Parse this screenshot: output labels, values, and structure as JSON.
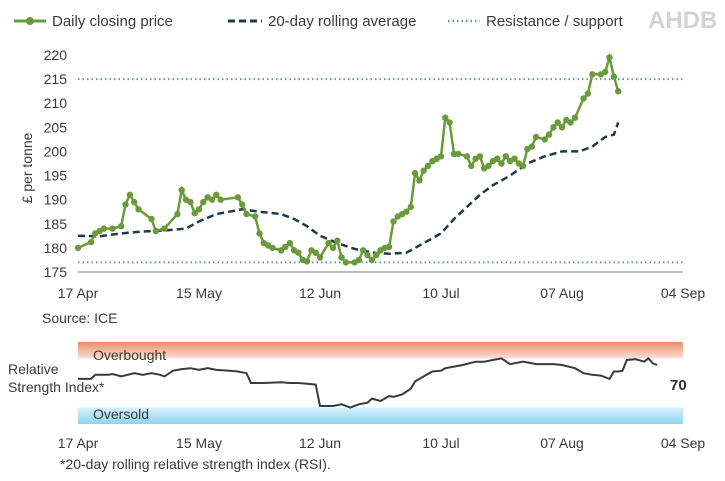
{
  "logo": "AHDB",
  "legend": {
    "daily": "Daily closing price",
    "rolling": "20-day rolling average",
    "resistance": "Resistance / support"
  },
  "source": "Source: ICE",
  "footnote": "*20-day rolling relative strength index (RSI).",
  "colors": {
    "daily": "#6a9a3a",
    "rolling": "#1f3a4a",
    "resistance": "#5f9e9e",
    "rsi": "#3a3a3a",
    "overbought": "#f0a888",
    "oversold": "#a8dcf0"
  },
  "chart_data": [
    {
      "type": "line",
      "ylabel": "£ per tonne",
      "ylim": [
        175,
        220
      ],
      "y_ticks": [
        "175",
        "180",
        "185",
        "190",
        "195",
        "200",
        "205",
        "210",
        "215",
        "220"
      ],
      "x_ticks": [
        "17 Apr",
        "15 May",
        "12 Jun",
        "10 Jul",
        "07 Aug",
        "04 Sep"
      ],
      "x_tick_days": [
        0,
        28,
        56,
        84,
        112,
        140
      ],
      "resistance": 215,
      "support": 177,
      "series": [
        {
          "name": "Daily closing price",
          "points": [
            [
              0,
              180
            ],
            [
              3,
              181.2
            ],
            [
              4,
              183
            ],
            [
              5,
              183.5
            ],
            [
              6,
              184
            ],
            [
              8,
              184
            ],
            [
              10,
              184.5
            ],
            [
              11,
              189
            ],
            [
              12,
              191
            ],
            [
              13,
              189.5
            ],
            [
              14,
              188
            ],
            [
              17,
              186
            ],
            [
              18,
              183.5
            ],
            [
              20,
              184
            ],
            [
              23,
              187
            ],
            [
              24,
              192
            ],
            [
              25,
              190
            ],
            [
              26,
              189.5
            ],
            [
              27,
              187.2
            ],
            [
              28,
              188
            ],
            [
              29,
              189.5
            ],
            [
              30,
              190.5
            ],
            [
              31,
              190
            ],
            [
              32,
              191
            ],
            [
              33,
              190
            ],
            [
              37,
              190.5
            ],
            [
              38,
              189
            ],
            [
              39,
              187
            ],
            [
              41,
              186.5
            ],
            [
              42,
              183
            ],
            [
              43,
              181
            ],
            [
              44,
              180.5
            ],
            [
              45,
              180
            ],
            [
              47,
              179.5
            ],
            [
              48,
              180.2
            ],
            [
              49,
              181
            ],
            [
              50,
              179.5
            ],
            [
              51,
              179
            ],
            [
              52,
              177.5
            ],
            [
              53,
              177.2
            ],
            [
              54,
              179.5
            ],
            [
              55,
              179
            ],
            [
              56,
              178
            ],
            [
              58,
              181
            ],
            [
              59,
              180
            ],
            [
              60,
              181.5
            ],
            [
              61,
              178
            ],
            [
              62,
              177
            ],
            [
              64,
              177
            ],
            [
              65,
              177.5
            ],
            [
              66,
              179.5
            ],
            [
              67,
              178.5
            ],
            [
              68,
              177.5
            ],
            [
              69,
              178.5
            ],
            [
              70,
              179.5
            ],
            [
              71,
              180
            ],
            [
              72,
              180.2
            ],
            [
              73,
              185.5
            ],
            [
              74,
              186.5
            ],
            [
              75,
              187
            ],
            [
              76,
              187.5
            ],
            [
              77,
              188.5
            ],
            [
              78,
              195.5
            ],
            [
              79,
              194
            ],
            [
              80,
              196
            ],
            [
              81,
              197
            ],
            [
              82,
              198
            ],
            [
              83,
              198.5
            ],
            [
              84,
              199
            ],
            [
              85,
              207
            ],
            [
              86,
              206
            ],
            [
              87,
              199.5
            ],
            [
              88,
              199.5
            ],
            [
              90,
              199
            ],
            [
              91,
              197
            ],
            [
              92,
              198.5
            ],
            [
              93,
              199
            ],
            [
              94,
              196.5
            ],
            [
              95,
              197
            ],
            [
              96,
              198
            ],
            [
              97,
              198.5
            ],
            [
              98,
              197.5
            ],
            [
              99,
              199
            ],
            [
              100,
              198
            ],
            [
              101,
              198.5
            ],
            [
              102,
              197.5
            ],
            [
              103,
              197
            ],
            [
              104,
              200.5
            ],
            [
              105,
              201
            ],
            [
              106,
              203
            ],
            [
              108,
              202.5
            ],
            [
              109,
              203.5
            ],
            [
              110,
              205
            ],
            [
              111,
              206
            ],
            [
              112,
              205
            ],
            [
              113,
              206.5
            ],
            [
              114,
              206
            ],
            [
              115,
              207
            ],
            [
              117,
              211
            ],
            [
              118,
              212
            ],
            [
              119,
              216
            ],
            [
              121,
              216
            ],
            [
              122,
              216.5
            ],
            [
              123,
              219.5
            ],
            [
              124,
              215.5
            ],
            [
              125,
              212.5
            ]
          ]
        },
        {
          "name": "20-day rolling average",
          "points": [
            [
              0,
              182.5
            ],
            [
              5,
              182.4
            ],
            [
              10,
              183
            ],
            [
              15,
              183.4
            ],
            [
              20,
              183.6
            ],
            [
              25,
              184
            ],
            [
              28,
              185.5
            ],
            [
              32,
              187
            ],
            [
              35,
              187.5
            ],
            [
              38,
              188
            ],
            [
              42,
              187.5
            ],
            [
              47,
              187
            ],
            [
              50,
              186
            ],
            [
              53,
              184.5
            ],
            [
              56,
              182.5
            ],
            [
              60,
              181
            ],
            [
              64,
              179.8
            ],
            [
              68,
              179
            ],
            [
              72,
              178.8
            ],
            [
              76,
              179
            ],
            [
              80,
              181
            ],
            [
              84,
              183
            ],
            [
              87,
              186
            ],
            [
              90,
              188.5
            ],
            [
              93,
              191
            ],
            [
              96,
              193
            ],
            [
              100,
              195
            ],
            [
              104,
              197.5
            ],
            [
              108,
              199
            ],
            [
              112,
              200
            ],
            [
              116,
              200
            ],
            [
              119,
              201
            ],
            [
              122,
              203
            ],
            [
              124,
              203.5
            ],
            [
              125,
              206
            ]
          ]
        }
      ]
    },
    {
      "type": "line",
      "title": "Relative Strength Index*",
      "value_label": "70",
      "bands": {
        "overbought": "Overbought",
        "oversold": "Oversold"
      },
      "ylim": [
        0,
        100
      ],
      "band_limits": {
        "overbought": [
          80,
          100
        ],
        "oversold": [
          0,
          20
        ]
      },
      "x_ticks": [
        "17 Apr",
        "15 May",
        "12 Jun",
        "10 Jul",
        "07 Aug",
        "04 Sep"
      ],
      "x_tick_days": [
        0,
        28,
        56,
        84,
        112,
        140
      ],
      "series": [
        {
          "name": "RSI",
          "points": [
            [
              0,
              55
            ],
            [
              3,
              55
            ],
            [
              4,
              60
            ],
            [
              7,
              60
            ],
            [
              8,
              61
            ],
            [
              10,
              58
            ],
            [
              13,
              62
            ],
            [
              15,
              60
            ],
            [
              17,
              62
            ],
            [
              19,
              60
            ],
            [
              20,
              58
            ],
            [
              22,
              65
            ],
            [
              24,
              67
            ],
            [
              26,
              68
            ],
            [
              28,
              66
            ],
            [
              30,
              68
            ],
            [
              32,
              66
            ],
            [
              35,
              65
            ],
            [
              37,
              64
            ],
            [
              39,
              62
            ],
            [
              40,
              50
            ],
            [
              43,
              50
            ],
            [
              47,
              51
            ],
            [
              49,
              50
            ],
            [
              51,
              50
            ],
            [
              53,
              49
            ],
            [
              55,
              48
            ],
            [
              56,
              22
            ],
            [
              59,
              22
            ],
            [
              61,
              24
            ],
            [
              63,
              20
            ],
            [
              65,
              24
            ],
            [
              67,
              26
            ],
            [
              68,
              31
            ],
            [
              70,
              28
            ],
            [
              72,
              34
            ],
            [
              73,
              33
            ],
            [
              75,
              36
            ],
            [
              77,
              43
            ],
            [
              78,
              52
            ],
            [
              80,
              58
            ],
            [
              82,
              64
            ],
            [
              84,
              65
            ],
            [
              85,
              68
            ],
            [
              87,
              70
            ],
            [
              89,
              72
            ],
            [
              92,
              76
            ],
            [
              94,
              76
            ],
            [
              96,
              78
            ],
            [
              98,
              80
            ],
            [
              100,
              73
            ],
            [
              103,
              76
            ],
            [
              106,
              73
            ],
            [
              110,
              73
            ],
            [
              112,
              72
            ],
            [
              115,
              68
            ],
            [
              117,
              62
            ],
            [
              119,
              60
            ],
            [
              121,
              59
            ],
            [
              123,
              55
            ],
            [
              124,
              64
            ],
            [
              125,
              64
            ],
            [
              126,
              65
            ],
            [
              127,
              78
            ],
            [
              129,
              79
            ],
            [
              131,
              76
            ],
            [
              132,
              80
            ],
            [
              133,
              74
            ],
            [
              134,
              72
            ]
          ]
        }
      ]
    }
  ]
}
